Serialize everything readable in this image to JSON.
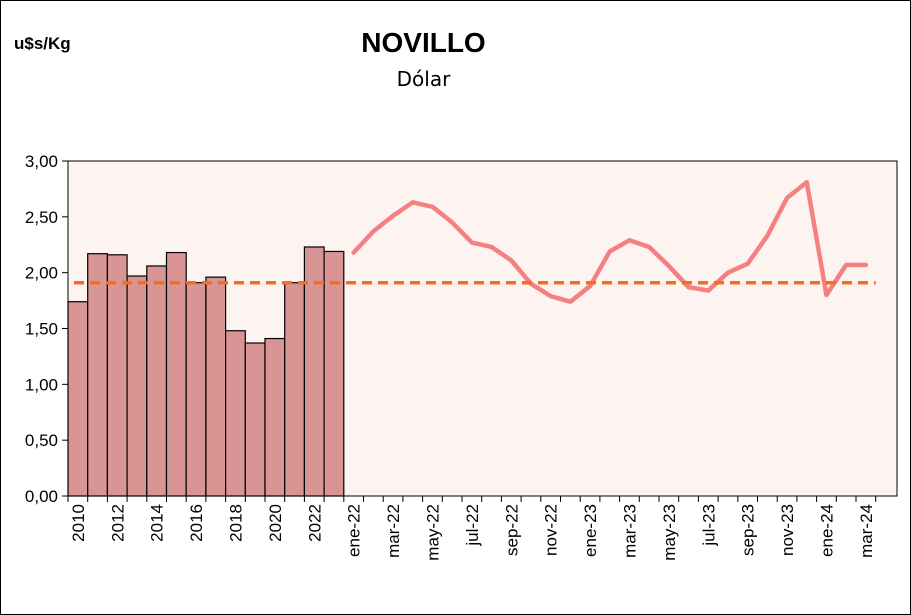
{
  "header": {
    "unit": "u$s/Kg",
    "title": "NOVILLO",
    "subtitle": "Dólar"
  },
  "chart_data": {
    "type": "bar+line",
    "title": "NOVILLO",
    "subtitle": "Dólar",
    "ylabel": "u$s/Kg",
    "ylim": [
      0,
      3
    ],
    "yticks": [
      "0,00",
      "0,50",
      "1,00",
      "1,50",
      "2,00",
      "2,50",
      "3,00"
    ],
    "grid": false,
    "colors": {
      "bars": "#d99594",
      "line": "#f58080",
      "average": "#f26f1f",
      "plot_bg": "#fdf3f1"
    },
    "annual": {
      "categories": [
        "2010",
        "2011",
        "2012",
        "2013",
        "2014",
        "2015",
        "2016",
        "2017",
        "2018",
        "2019",
        "2020",
        "2021",
        "2022",
        "2023"
      ],
      "tick_labels": [
        "2010",
        "2012",
        "2014",
        "2016",
        "2018",
        "2020",
        "2022"
      ],
      "values": [
        1.74,
        2.17,
        2.16,
        1.97,
        2.06,
        2.18,
        1.91,
        1.96,
        1.48,
        1.37,
        1.41,
        1.91,
        2.23,
        2.19
      ]
    },
    "monthly": {
      "categories": [
        "ene-22",
        "feb-22",
        "mar-22",
        "abr-22",
        "may-22",
        "jun-22",
        "jul-22",
        "ago-22",
        "sep-22",
        "oct-22",
        "nov-22",
        "dic-22",
        "ene-23",
        "feb-23",
        "mar-23",
        "abr-23",
        "may-23",
        "jun-23",
        "jul-23",
        "ago-23",
        "sep-23",
        "oct-23",
        "nov-23",
        "dic-23",
        "ene-24",
        "feb-24",
        "mar-24"
      ],
      "tick_labels": [
        "ene-22",
        "mar-22",
        "may-22",
        "jul-22",
        "sep-22",
        "nov-22",
        "ene-23",
        "mar-23",
        "may-23",
        "jul-23",
        "sep-23",
        "nov-23",
        "ene-24",
        "mar-24"
      ],
      "values": [
        2.18,
        2.37,
        2.51,
        2.63,
        2.59,
        2.45,
        2.27,
        2.23,
        2.11,
        1.9,
        1.79,
        1.74,
        1.88,
        2.19,
        2.29,
        2.23,
        2.06,
        1.87,
        1.84,
        2.0,
        2.08,
        2.33,
        2.67,
        2.81,
        1.8,
        2.07,
        2.07
      ]
    },
    "average": 1.91
  }
}
